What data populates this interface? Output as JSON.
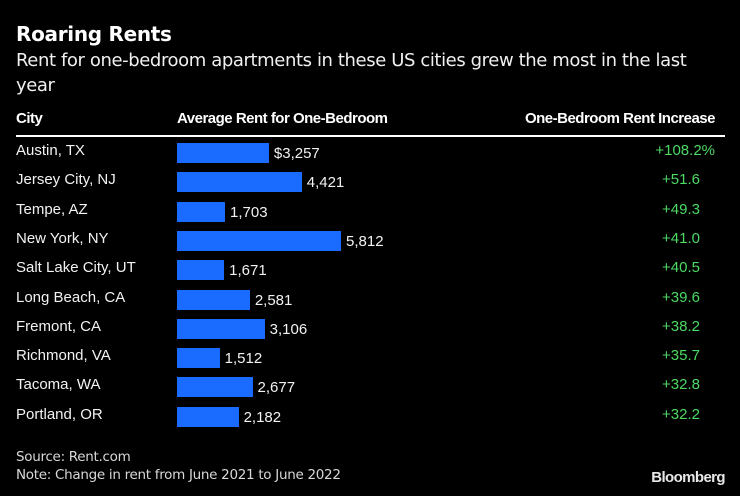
{
  "chart_data": {
    "type": "bar",
    "orientation": "horizontal",
    "title": "Roaring Rents",
    "subtitle": "Rent for one-bedroom apartments in these US cities grew the most in the last year",
    "columns": {
      "city": "City",
      "rent": "Average Rent for One-Bedroom",
      "increase": "One-Bedroom Rent Increase"
    },
    "categories": [
      "Austin, TX",
      "Jersey City, NJ",
      "Tempe, AZ",
      "New York, NY",
      "Salt Lake City, UT",
      "Long Beach, CA",
      "Fremont, CA",
      "Richmond, VA",
      "Tacoma, WA",
      "Portland, OR"
    ],
    "series": [
      {
        "name": "Average Rent for One-Bedroom",
        "values": [
          3257,
          4421,
          1703,
          5812,
          1671,
          2581,
          3106,
          1512,
          2677,
          2182
        ],
        "labels": [
          "$3,257",
          "4,421",
          "1,703",
          "5,812",
          "1,671",
          "2,581",
          "3,106",
          "1,512",
          "2,677",
          "2,182"
        ]
      },
      {
        "name": "One-Bedroom Rent Increase",
        "values": [
          108.2,
          51.6,
          49.3,
          41.0,
          40.5,
          39.6,
          38.2,
          35.7,
          32.8,
          32.2
        ],
        "labels": [
          "+108.2%",
          "+51.6",
          "+49.3",
          "+41.0",
          "+40.5",
          "+39.6",
          "+38.2",
          "+35.7",
          "+32.8",
          "+32.2"
        ]
      }
    ],
    "xlim": [
      0,
      5812
    ],
    "grid": false,
    "colors": {
      "bar": "#1a6bff",
      "increase": "#4cd964",
      "background": "#000000"
    }
  },
  "footer": {
    "source": "Source: Rent.com",
    "note": "Note: Change in rent from June 2021 to June 2022",
    "brand": "Bloomberg"
  }
}
